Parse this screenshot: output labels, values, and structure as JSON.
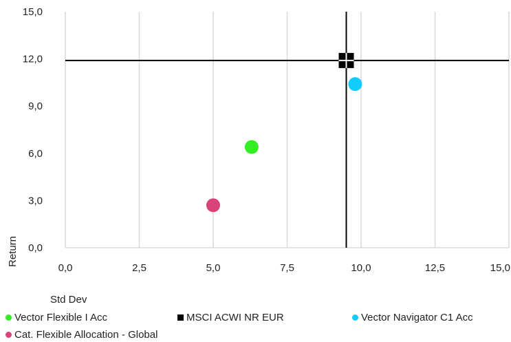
{
  "chart_data": {
    "type": "scatter",
    "xlabel": "Std Dev",
    "ylabel": "Return",
    "xlim": [
      0,
      15
    ],
    "ylim": [
      0,
      15
    ],
    "x_ticks": [
      "0,0",
      "2,5",
      "5,0",
      "7,5",
      "10,0",
      "12,5",
      "15,0"
    ],
    "y_ticks": [
      "0,0",
      "3,0",
      "6,0",
      "9,0",
      "12,0",
      "15,0"
    ],
    "x_tick_values": [
      0,
      2.5,
      5,
      7.5,
      10,
      12.5,
      15
    ],
    "y_tick_values": [
      0,
      3,
      6,
      9,
      12,
      15
    ],
    "grid": "vertical",
    "legend_position": "bottom",
    "crosshair": {
      "x": 9.5,
      "y": 11.9
    },
    "series": [
      {
        "name": "Vector Flexible I Acc",
        "x": 6.3,
        "y": 6.4,
        "color": "#33ee22",
        "marker": "circle"
      },
      {
        "name": "MSCI ACWI NR EUR",
        "x": 9.5,
        "y": 11.9,
        "color": "#000000",
        "marker": "square"
      },
      {
        "name": "Vector Navigator C1 Acc",
        "x": 9.8,
        "y": 10.4,
        "color": "#11ccff",
        "marker": "circle"
      },
      {
        "name": "Cat. Flexible Allocation - Global",
        "x": 5.0,
        "y": 2.7,
        "color": "#d9437a",
        "marker": "circle"
      }
    ]
  }
}
